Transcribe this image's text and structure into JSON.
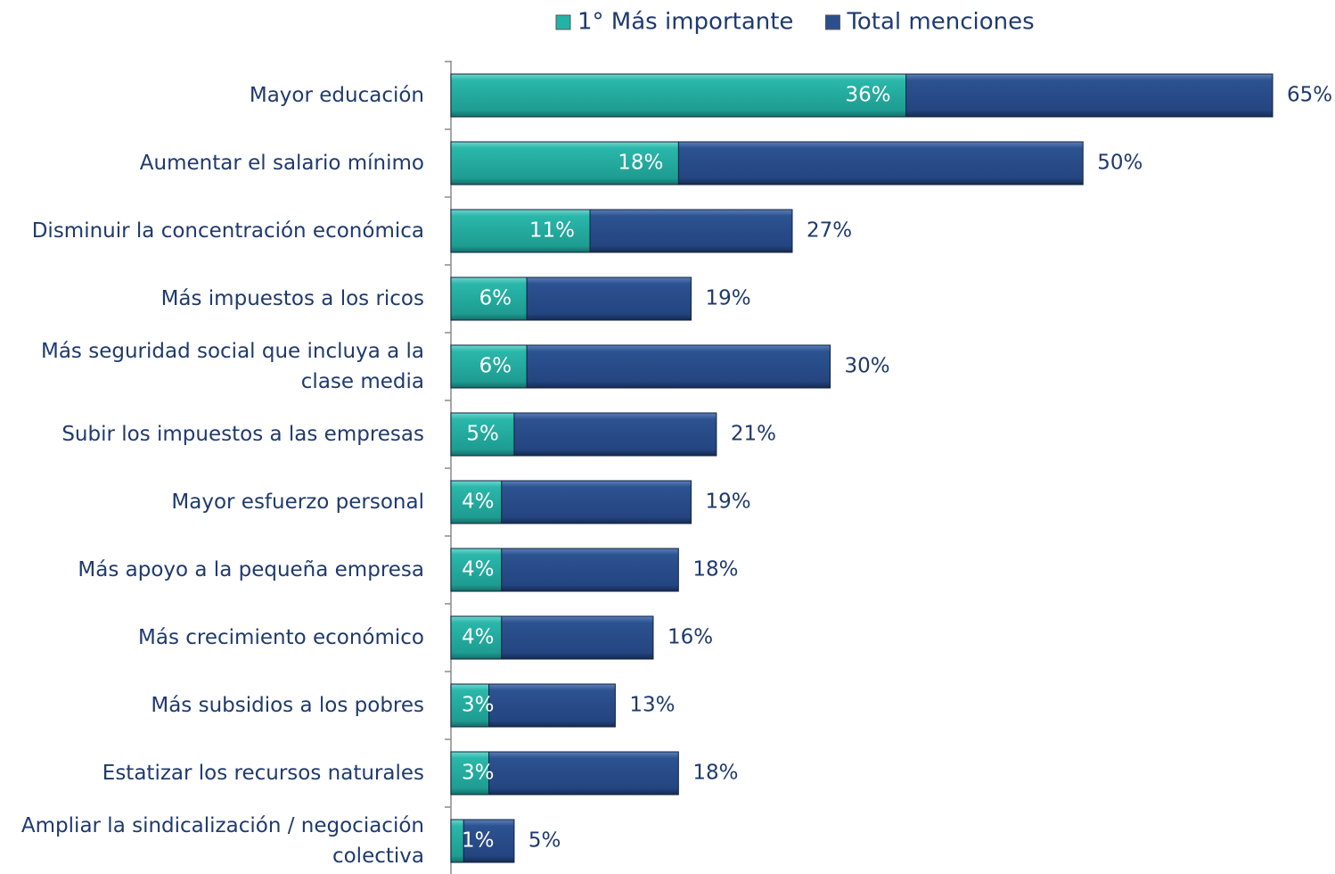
{
  "chart_data": {
    "type": "bar",
    "orientation": "horizontal",
    "overlap": true,
    "categories": [
      "Mayor educación",
      "Aumentar el salario mínimo",
      "Disminuir la concentración económica",
      "Más impuestos a los ricos",
      "Más seguridad social que incluya a la clase media",
      "Subir los impuestos a las empresas",
      "Mayor esfuerzo personal",
      "Más apoyo a la pequeña empresa",
      "Más crecimiento económico",
      "Más subsidios a los pobres",
      "Estatizar los recursos naturales",
      "Ampliar la sindicalización / negociación colectiva"
    ],
    "series": [
      {
        "name": "Total menciones",
        "color": "#2b4f8c",
        "values": [
          65,
          50,
          27,
          19,
          30,
          21,
          19,
          18,
          16,
          13,
          18,
          5
        ],
        "value_labels": [
          "65%",
          "50%",
          "27%",
          "19%",
          "30%",
          "21%",
          "19%",
          "18%",
          "16%",
          "13%",
          "18%",
          "5%"
        ]
      },
      {
        "name": "1° Más importante",
        "color": "#25b2a6",
        "values": [
          36,
          18,
          11,
          6,
          6,
          5,
          4,
          4,
          4,
          3,
          3,
          1
        ],
        "value_labels": [
          "36%",
          "18%",
          "11%",
          "6%",
          "6%",
          "5%",
          "4%",
          "4%",
          "4%",
          "3%",
          "3%",
          "1%"
        ]
      }
    ],
    "legend": "top"
  }
}
